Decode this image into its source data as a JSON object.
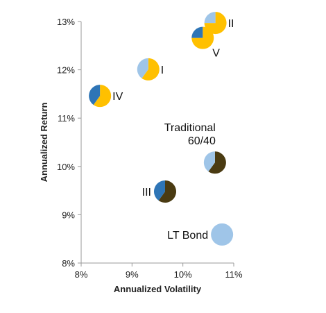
{
  "chart_data": {
    "type": "scatter",
    "title": "",
    "xlabel": "Annualized Volatility",
    "ylabel": "Annualized Return",
    "xlim": [
      0.08,
      0.11
    ],
    "ylim": [
      0.08,
      0.13
    ],
    "xticks": [
      {
        "value": 0.08,
        "label": "8%"
      },
      {
        "value": 0.09,
        "label": "9%"
      },
      {
        "value": 0.1,
        "label": "10%"
      },
      {
        "value": 0.11,
        "label": "11%"
      }
    ],
    "yticks": [
      {
        "value": 0.08,
        "label": "8%"
      },
      {
        "value": 0.09,
        "label": "9%"
      },
      {
        "value": 0.1,
        "label": "10%"
      },
      {
        "value": 0.11,
        "label": "11%"
      },
      {
        "value": 0.12,
        "label": "12%"
      },
      {
        "value": 0.13,
        "label": "13%"
      }
    ],
    "grid": false,
    "marker": "pie",
    "colors": {
      "light_blue": "#9fc5e8",
      "dark_blue": "#2e75b6",
      "gold": "#ffc000",
      "dark_brown": "#4a3b12"
    },
    "points": [
      {
        "label": "I",
        "x": 0.0932,
        "y": 0.1201,
        "label_side": "right",
        "slices": [
          {
            "color": "gold",
            "value": 0.6
          },
          {
            "color": "light_blue",
            "value": 0.4
          }
        ]
      },
      {
        "label": "II",
        "x": 0.1064,
        "y": 0.1297,
        "label_side": "right",
        "slices": [
          {
            "color": "gold",
            "value": 0.75
          },
          {
            "color": "light_blue",
            "value": 0.25
          }
        ]
      },
      {
        "label": "III",
        "x": 0.0965,
        "y": 0.0948,
        "label_side": "left",
        "slices": [
          {
            "color": "dark_brown",
            "value": 0.6
          },
          {
            "color": "dark_blue",
            "value": 0.4
          }
        ]
      },
      {
        "label": "IV",
        "x": 0.0837,
        "y": 0.1146,
        "label_side": "right",
        "slices": [
          {
            "color": "gold",
            "value": 0.6
          },
          {
            "color": "dark_blue",
            "value": 0.4
          }
        ]
      },
      {
        "label": "V",
        "x": 0.1039,
        "y": 0.1266,
        "label_side": "below-right",
        "slices": [
          {
            "color": "gold",
            "value": 0.75
          },
          {
            "color": "dark_blue",
            "value": 0.25
          }
        ]
      },
      {
        "label": "Traditional 60/40",
        "label_lines": [
          "Traditional",
          "60/40"
        ],
        "x": 0.1063,
        "y": 0.1008,
        "label_side": "above-left",
        "slices": [
          {
            "color": "dark_brown",
            "value": 0.6
          },
          {
            "color": "light_blue",
            "value": 0.4
          }
        ]
      },
      {
        "label": "LT Bond",
        "x": 0.1077,
        "y": 0.0859,
        "label_side": "left",
        "slices": [
          {
            "color": "light_blue",
            "value": 1.0
          }
        ]
      }
    ]
  }
}
